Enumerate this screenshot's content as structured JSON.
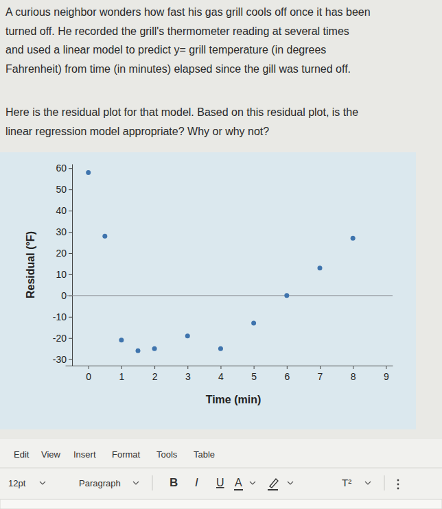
{
  "question": {
    "paragraphs": [
      [
        "A curious neighbor wonders how fast his gas grill cools off once it has been",
        "turned off.  He recorded the grill's thermometer reading at several times",
        "and used a linear model to predict y= grill temperature (in degrees",
        "Fahrenheit) from time (in minutes) elapsed since the gill was turned off."
      ],
      [
        "Here is the residual plot for that model.  Based on this residual plot, is the",
        "linear regression model appropriate?  Why or why not?"
      ]
    ]
  },
  "chart_data": {
    "type": "scatter",
    "x_label": "Time (min)",
    "y_label": "Residual (°F)",
    "x": [
      0,
      0.5,
      1,
      1.5,
      2,
      3,
      4,
      5,
      6,
      7,
      8
    ],
    "values": [
      58,
      28,
      -21,
      -26,
      -25,
      -19,
      -25,
      -13,
      0,
      13,
      27
    ],
    "baseline": 0,
    "color": "#3f74ad",
    "marker": "circle",
    "xlim": [
      -0.7,
      9.2
    ],
    "xticks": [
      0,
      1,
      2,
      3,
      4,
      5,
      6,
      7,
      8,
      9
    ],
    "ylim": [
      -33,
      62
    ],
    "yticks": [
      -30,
      -20,
      -10,
      0,
      10,
      20,
      30,
      40,
      50,
      60
    ],
    "grid": false
  },
  "editor": {
    "menu": [
      "Edit",
      "View",
      "Insert",
      "Format",
      "Tools",
      "Table"
    ],
    "toolbar": [
      "12pt",
      "Paragraph",
      "B",
      "I",
      "U",
      "A",
      "T²"
    ]
  }
}
